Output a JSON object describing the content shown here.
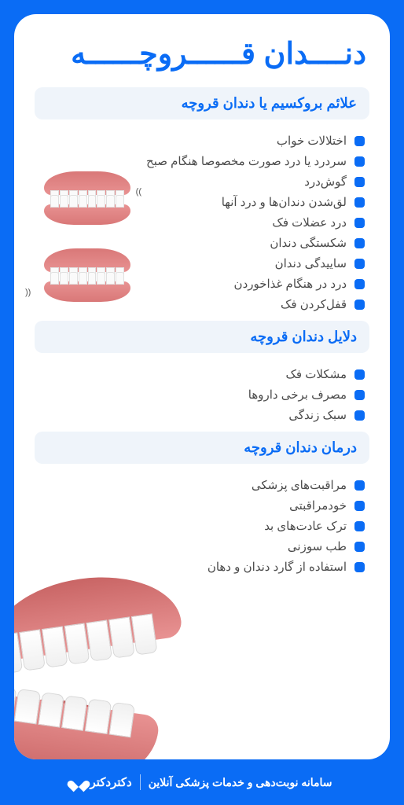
{
  "colors": {
    "primary": "#0a6cf5",
    "card_bg": "#ffffff",
    "section_bg": "#eff4fa",
    "text": "#4a4a4a",
    "gum": "#e89292",
    "gum_dark": "#c96565"
  },
  "title": "دنــــدان قــــــروچــــــه",
  "sections": [
    {
      "header": "علائم بروکسیم یا دندان قروچه",
      "items": [
        "اختلالات خواب",
        "سردرد یا درد صورت مخصوصا هنگام صبح",
        "گوش‌درد",
        "لق‌شدن دندان‌ها و درد آنها",
        "درد عضلات فک",
        "شکستگی دندان",
        "ساییدگی دندان",
        "درد در هنگام غذاخوردن",
        "قفل‌کردن فک"
      ]
    },
    {
      "header": "دلایل دندان قروچه",
      "items": [
        "مشکلات فک",
        "مصرف برخی داروها",
        "سبک زندگی"
      ]
    },
    {
      "header": "درمان دندان قروچه",
      "items": [
        "مراقبت‌های پزشکی",
        "خودمراقبتی",
        "ترک عادت‌های بد",
        "طب سوزنی",
        "استفاده از گارد دندان و دهان"
      ]
    }
  ],
  "footer": {
    "tagline": "سامانه نوبت‌دهی و خدمات پزشکی آنلاین",
    "brand": "دکتردکتر"
  }
}
